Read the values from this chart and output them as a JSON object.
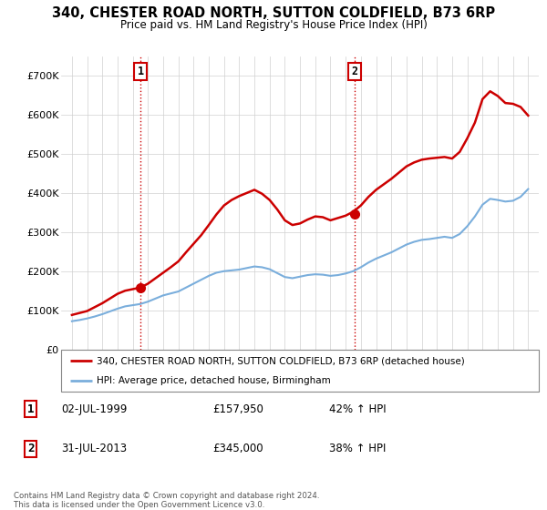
{
  "title": "340, CHESTER ROAD NORTH, SUTTON COLDFIELD, B73 6RP",
  "subtitle": "Price paid vs. HM Land Registry's House Price Index (HPI)",
  "ylim": [
    0,
    750000
  ],
  "yticks": [
    0,
    100000,
    200000,
    300000,
    400000,
    500000,
    600000,
    700000
  ],
  "ytick_labels": [
    "£0",
    "£100K",
    "£200K",
    "£300K",
    "£400K",
    "£500K",
    "£600K",
    "£700K"
  ],
  "xlim_min": 1994.3,
  "xlim_max": 2025.7,
  "sale1_date_num": 1999.5,
  "sale1_price": 157950,
  "sale1_label": "1",
  "sale2_date_num": 2013.58,
  "sale2_price": 345000,
  "sale2_label": "2",
  "line_color_property": "#cc0000",
  "line_color_hpi": "#7aaedc",
  "background_color": "#ffffff",
  "grid_color": "#d0d0d0",
  "legend_label_property": "340, CHESTER ROAD NORTH, SUTTON COLDFIELD, B73 6RP (detached house)",
  "legend_label_hpi": "HPI: Average price, detached house, Birmingham",
  "table_rows": [
    {
      "num": "1",
      "date": "02-JUL-1999",
      "price": "£157,950",
      "change": "42% ↑ HPI"
    },
    {
      "num": "2",
      "date": "31-JUL-2013",
      "price": "£345,000",
      "change": "38% ↑ HPI"
    }
  ],
  "footnote": "Contains HM Land Registry data © Crown copyright and database right 2024.\nThis data is licensed under the Open Government Licence v3.0.",
  "hpi_x": [
    1995.0,
    1995.5,
    1996.0,
    1996.5,
    1997.0,
    1997.5,
    1998.0,
    1998.5,
    1999.0,
    1999.5,
    2000.0,
    2000.5,
    2001.0,
    2001.5,
    2002.0,
    2002.5,
    2003.0,
    2003.5,
    2004.0,
    2004.5,
    2005.0,
    2005.5,
    2006.0,
    2006.5,
    2007.0,
    2007.5,
    2008.0,
    2008.5,
    2009.0,
    2009.5,
    2010.0,
    2010.5,
    2011.0,
    2011.5,
    2012.0,
    2012.5,
    2013.0,
    2013.5,
    2014.0,
    2014.5,
    2015.0,
    2015.5,
    2016.0,
    2016.5,
    2017.0,
    2017.5,
    2018.0,
    2018.5,
    2019.0,
    2019.5,
    2020.0,
    2020.5,
    2021.0,
    2021.5,
    2022.0,
    2022.5,
    2023.0,
    2023.5,
    2024.0,
    2024.5,
    2025.0
  ],
  "hpi_y": [
    72000,
    75000,
    79000,
    84000,
    90000,
    97000,
    104000,
    110000,
    113000,
    116000,
    122000,
    130000,
    138000,
    143000,
    148000,
    158000,
    168000,
    178000,
    188000,
    196000,
    200000,
    202000,
    204000,
    208000,
    212000,
    210000,
    205000,
    195000,
    185000,
    182000,
    186000,
    190000,
    192000,
    191000,
    188000,
    190000,
    194000,
    200000,
    210000,
    222000,
    232000,
    240000,
    248000,
    258000,
    268000,
    275000,
    280000,
    282000,
    285000,
    288000,
    285000,
    295000,
    315000,
    340000,
    370000,
    385000,
    382000,
    378000,
    380000,
    390000,
    410000
  ],
  "prop_x": [
    1995.0,
    1995.5,
    1996.0,
    1996.5,
    1997.0,
    1997.5,
    1998.0,
    1998.5,
    1999.0,
    1999.5,
    2000.0,
    2000.5,
    2001.0,
    2001.5,
    2002.0,
    2002.5,
    2003.0,
    2003.5,
    2004.0,
    2004.5,
    2005.0,
    2005.5,
    2006.0,
    2006.5,
    2007.0,
    2007.5,
    2008.0,
    2008.5,
    2009.0,
    2009.5,
    2010.0,
    2010.5,
    2011.0,
    2011.5,
    2012.0,
    2012.5,
    2013.0,
    2013.5,
    2014.0,
    2014.5,
    2015.0,
    2015.5,
    2016.0,
    2016.5,
    2017.0,
    2017.5,
    2018.0,
    2018.5,
    2019.0,
    2019.5,
    2020.0,
    2020.5,
    2021.0,
    2021.5,
    2022.0,
    2022.5,
    2023.0,
    2023.5,
    2024.0,
    2024.5,
    2025.0
  ],
  "prop_y": [
    88000,
    93000,
    98000,
    108000,
    118000,
    130000,
    142000,
    150000,
    154000,
    158000,
    168000,
    182000,
    196000,
    210000,
    225000,
    248000,
    270000,
    292000,
    318000,
    345000,
    368000,
    382000,
    392000,
    400000,
    408000,
    398000,
    382000,
    358000,
    330000,
    318000,
    322000,
    332000,
    340000,
    338000,
    330000,
    336000,
    342000,
    352000,
    368000,
    390000,
    408000,
    422000,
    436000,
    452000,
    468000,
    478000,
    485000,
    488000,
    490000,
    492000,
    488000,
    505000,
    540000,
    580000,
    640000,
    660000,
    648000,
    630000,
    628000,
    620000,
    598000
  ]
}
